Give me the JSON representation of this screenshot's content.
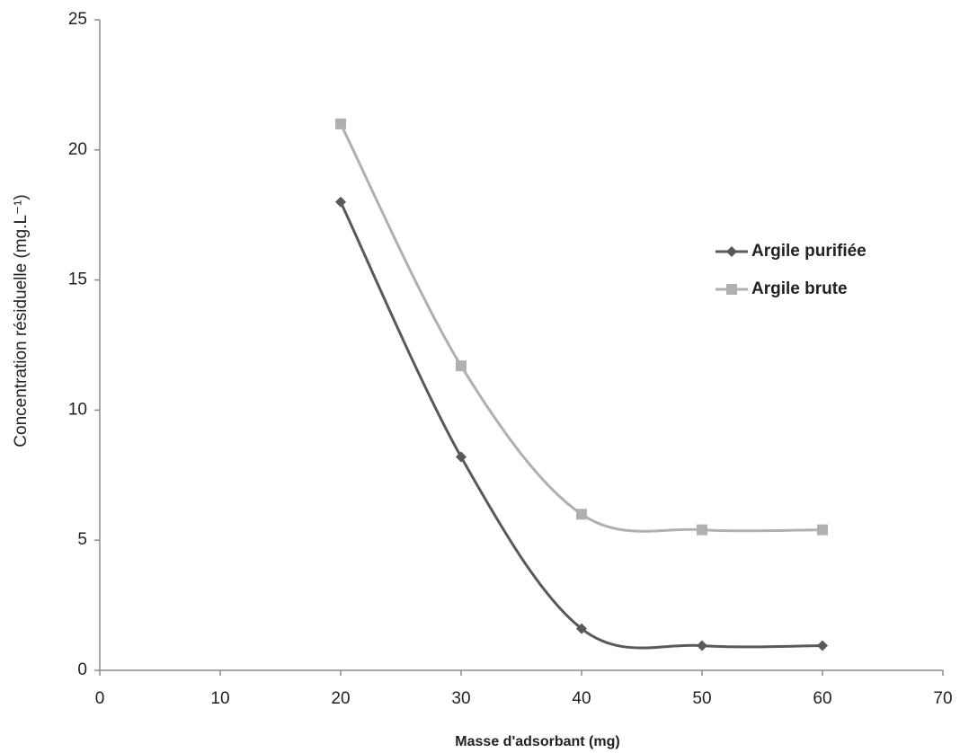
{
  "chart_data": {
    "type": "line",
    "xlabel": "Masse d'adsorbant (mg)",
    "ylabel": "Concentration résiduelle (mg.L⁻¹)",
    "x": [
      20,
      30,
      40,
      50,
      60
    ],
    "series": [
      {
        "name": "Argile purifiée",
        "color": "#595959",
        "marker": "diamond",
        "values": [
          18,
          8.2,
          1.6,
          0.95,
          0.95
        ]
      },
      {
        "name": "Argile brute",
        "color": "#b0b0b0",
        "marker": "square",
        "values": [
          21,
          11.7,
          6,
          5.4,
          5.4
        ]
      }
    ],
    "xlim": [
      0,
      70
    ],
    "xticks": [
      0,
      10,
      20,
      30,
      40,
      50,
      60,
      70
    ],
    "ylim": [
      0,
      25
    ],
    "yticks": [
      0,
      5,
      10,
      15,
      20,
      25
    ],
    "smooth": true,
    "grid": false,
    "legend": "right"
  }
}
